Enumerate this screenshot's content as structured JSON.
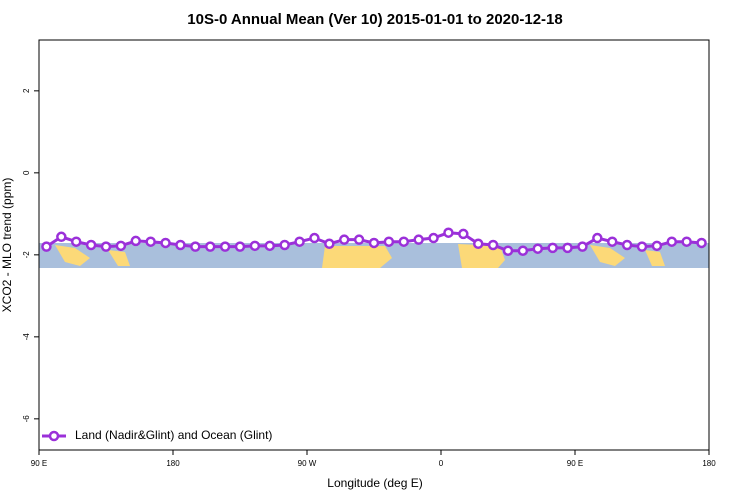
{
  "chart_data": {
    "type": "line",
    "title": "10S-0 Annual Mean (Ver 10)   2015-01-01 to 2020-12-18",
    "x_label": "Longitude (deg E)",
    "y_label": "XCO2 - MLO trend (ppm)",
    "xlim": [
      90,
      540
    ],
    "xticks": [
      {
        "value": 90,
        "label": "90 E"
      },
      180,
      {
        "value": 270,
        "label": "90 W"
      },
      {
        "value": 360,
        "label": "0"
      },
      {
        "value": 450,
        "label": "90 E"
      },
      {
        "value": 540,
        "label": "180"
      }
    ],
    "ylim": [
      -6.76,
      3.24
    ],
    "yticks": [
      -6,
      -4,
      -2,
      0,
      2
    ],
    "x": [
      95,
      105,
      115,
      125,
      135,
      145,
      155,
      165,
      175,
      185,
      195,
      205,
      215,
      225,
      235,
      245,
      255,
      265,
      275,
      285,
      295,
      305,
      315,
      325,
      335,
      345,
      355,
      365,
      375,
      385,
      395,
      405,
      415,
      425,
      435,
      445,
      455,
      465,
      475,
      485,
      495,
      505,
      515,
      525,
      535
    ],
    "series": [
      {
        "name": "Land (Nadir&Glint) and Ocean (Glint)",
        "color": "#9b30d9",
        "values": [
          -1.8,
          -1.56,
          -1.68,
          -1.76,
          -1.8,
          -1.78,
          -1.66,
          -1.68,
          -1.71,
          -1.76,
          -1.8,
          -1.8,
          -1.8,
          -1.8,
          -1.78,
          -1.78,
          -1.76,
          -1.68,
          -1.59,
          -1.73,
          -1.63,
          -1.63,
          -1.71,
          -1.68,
          -1.68,
          -1.63,
          -1.59,
          -1.46,
          -1.49,
          -1.73,
          -1.76,
          -1.9,
          -1.9,
          -1.85,
          -1.83,
          -1.83,
          -1.8,
          -1.59,
          -1.68,
          -1.76,
          -1.8,
          -1.78,
          -1.68,
          -1.68,
          -1.71
        ]
      }
    ],
    "legend": "bottom-left"
  }
}
